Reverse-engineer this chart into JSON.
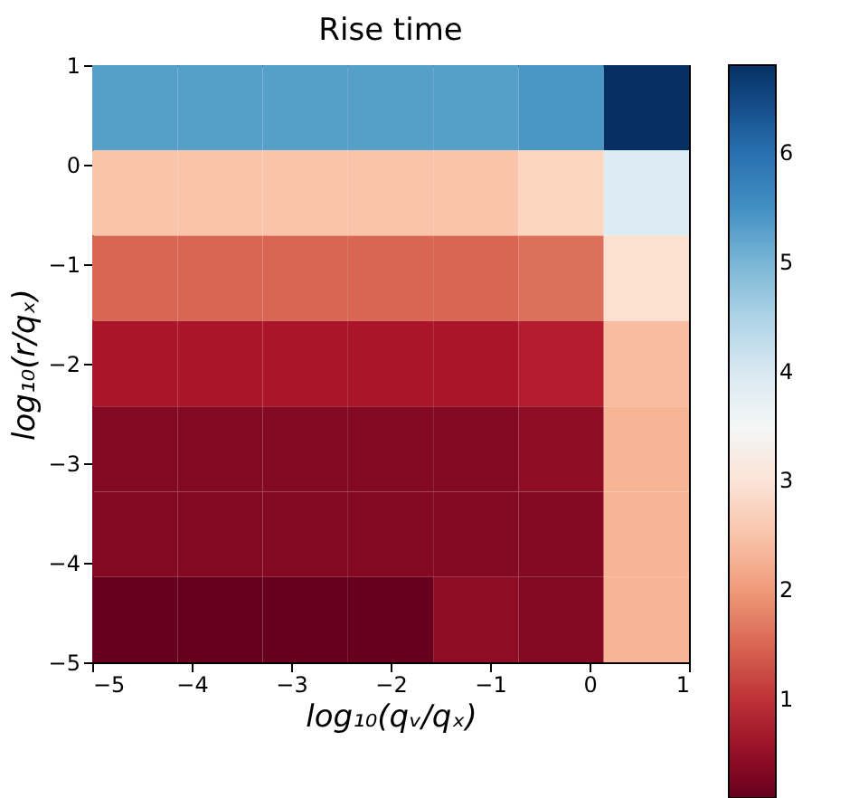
{
  "chart_data": {
    "type": "heatmap",
    "title": "Rise time",
    "xlabel": "log₁₀(qᵥ/qₓ)",
    "ylabel": "log₁₀(r/qₓ)",
    "xlim": [
      -5,
      1
    ],
    "ylim": [
      -5,
      1
    ],
    "xticks": [
      -5,
      -4,
      -3,
      -2,
      -1,
      0,
      1
    ],
    "yticks": [
      -5,
      -4,
      -3,
      -2,
      -1,
      0,
      1
    ],
    "clim": [
      0.1,
      6.8
    ],
    "cticks": [
      1,
      2,
      3,
      4,
      5,
      6
    ],
    "grid": false,
    "cells": [
      [
        5.3,
        5.3,
        5.3,
        5.3,
        5.3,
        5.4,
        6.8
      ],
      [
        2.5,
        2.5,
        2.5,
        2.5,
        2.5,
        2.7,
        3.9
      ],
      [
        1.5,
        1.5,
        1.5,
        1.5,
        1.5,
        1.6,
        2.9
      ],
      [
        0.7,
        0.7,
        0.7,
        0.7,
        0.7,
        0.8,
        2.4
      ],
      [
        0.35,
        0.35,
        0.35,
        0.35,
        0.35,
        0.45,
        2.3
      ],
      [
        0.35,
        0.35,
        0.35,
        0.35,
        0.35,
        0.35,
        2.3
      ],
      [
        0.1,
        0.1,
        0.1,
        0.1,
        0.45,
        0.35,
        2.3
      ]
    ]
  }
}
